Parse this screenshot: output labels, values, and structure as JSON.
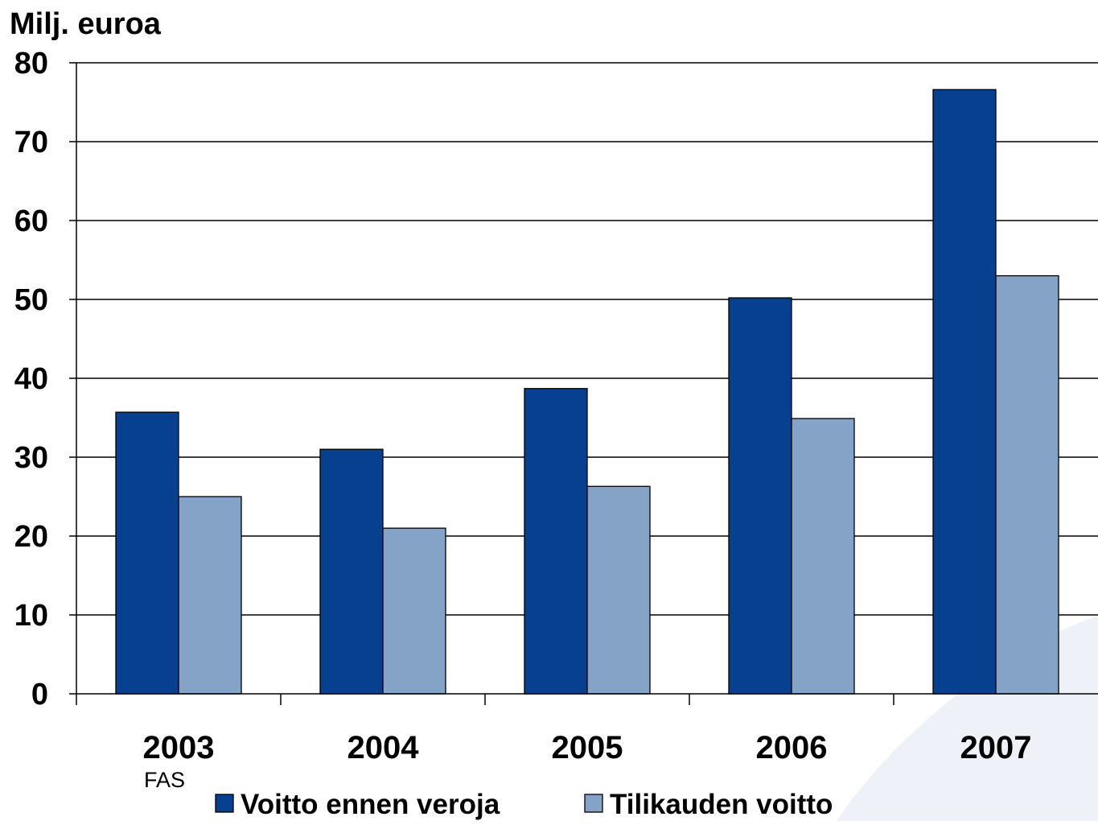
{
  "chart_data": {
    "type": "bar",
    "ylabel": "Milj. euroa",
    "categories": [
      "2003",
      "2004",
      "2005",
      "2006",
      "2007"
    ],
    "category_sublabels": [
      "FAS",
      "",
      "",
      "",
      ""
    ],
    "ylim": [
      0,
      80
    ],
    "yticks": [
      0,
      10,
      20,
      30,
      40,
      50,
      60,
      70,
      80
    ],
    "grid": true,
    "legend_position": "bottom",
    "series": [
      {
        "name": "Voitto ennen veroja",
        "color": "#06408E",
        "values": [
          35.7,
          31.0,
          38.7,
          50.2,
          76.6
        ]
      },
      {
        "name": "Tilikauden voitto",
        "color": "#85A2C7",
        "values": [
          25.0,
          21.0,
          26.3,
          34.9,
          53.0
        ]
      }
    ]
  }
}
